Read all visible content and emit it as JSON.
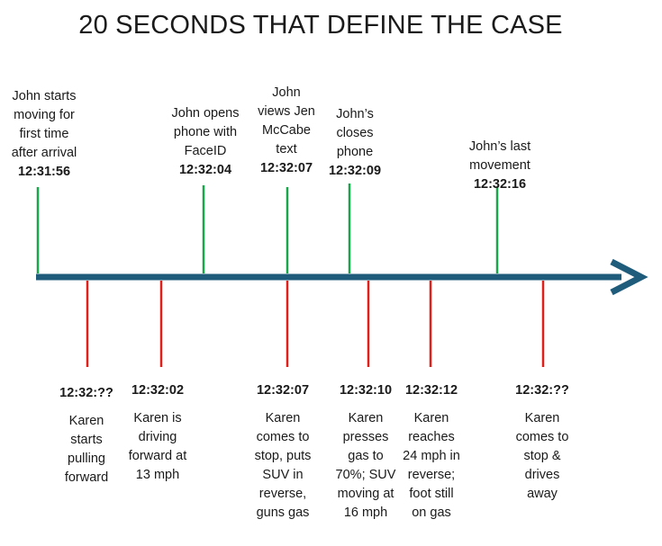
{
  "title": "20 SECONDS THAT DEFINE THE CASE",
  "colors": {
    "axis": "#1f5b7a",
    "john": "#1aa64b",
    "karen": "#e0211b"
  },
  "john_events": [
    {
      "text": "John starts\nmoving for\nfirst time\nafter arrival",
      "time": "12:31:56"
    },
    {
      "text": "John opens\nphone with\nFaceID",
      "time": "12:32:04"
    },
    {
      "text": "John\nviews Jen\nMcCabe\ntext",
      "time": "12:32:07"
    },
    {
      "text": "John’s\ncloses\nphone",
      "time": "12:32:09"
    },
    {
      "text": "John’s last\nmovement",
      "time": "12:32:16"
    }
  ],
  "karen_events": [
    {
      "time": "12:32:??",
      "text": "Karen\nstarts\npulling\nforward"
    },
    {
      "time": "12:32:02",
      "text": "Karen is\ndriving\nforward at\n13 mph"
    },
    {
      "time": "12:32:07",
      "text": "Karen\ncomes to\nstop, puts\nSUV in\nreverse,\nguns gas"
    },
    {
      "time": "12:32:10",
      "text": "Karen\npresses\ngas to\n70%; SUV\nmoving at\n16 mph"
    },
    {
      "time": "12:32:12",
      "text": "Karen\nreaches\n24 mph in\nreverse;\nfoot still\non gas"
    },
    {
      "time": "12:32:??",
      "text": "Karen\ncomes to\nstop &\ndrives\naway"
    }
  ]
}
